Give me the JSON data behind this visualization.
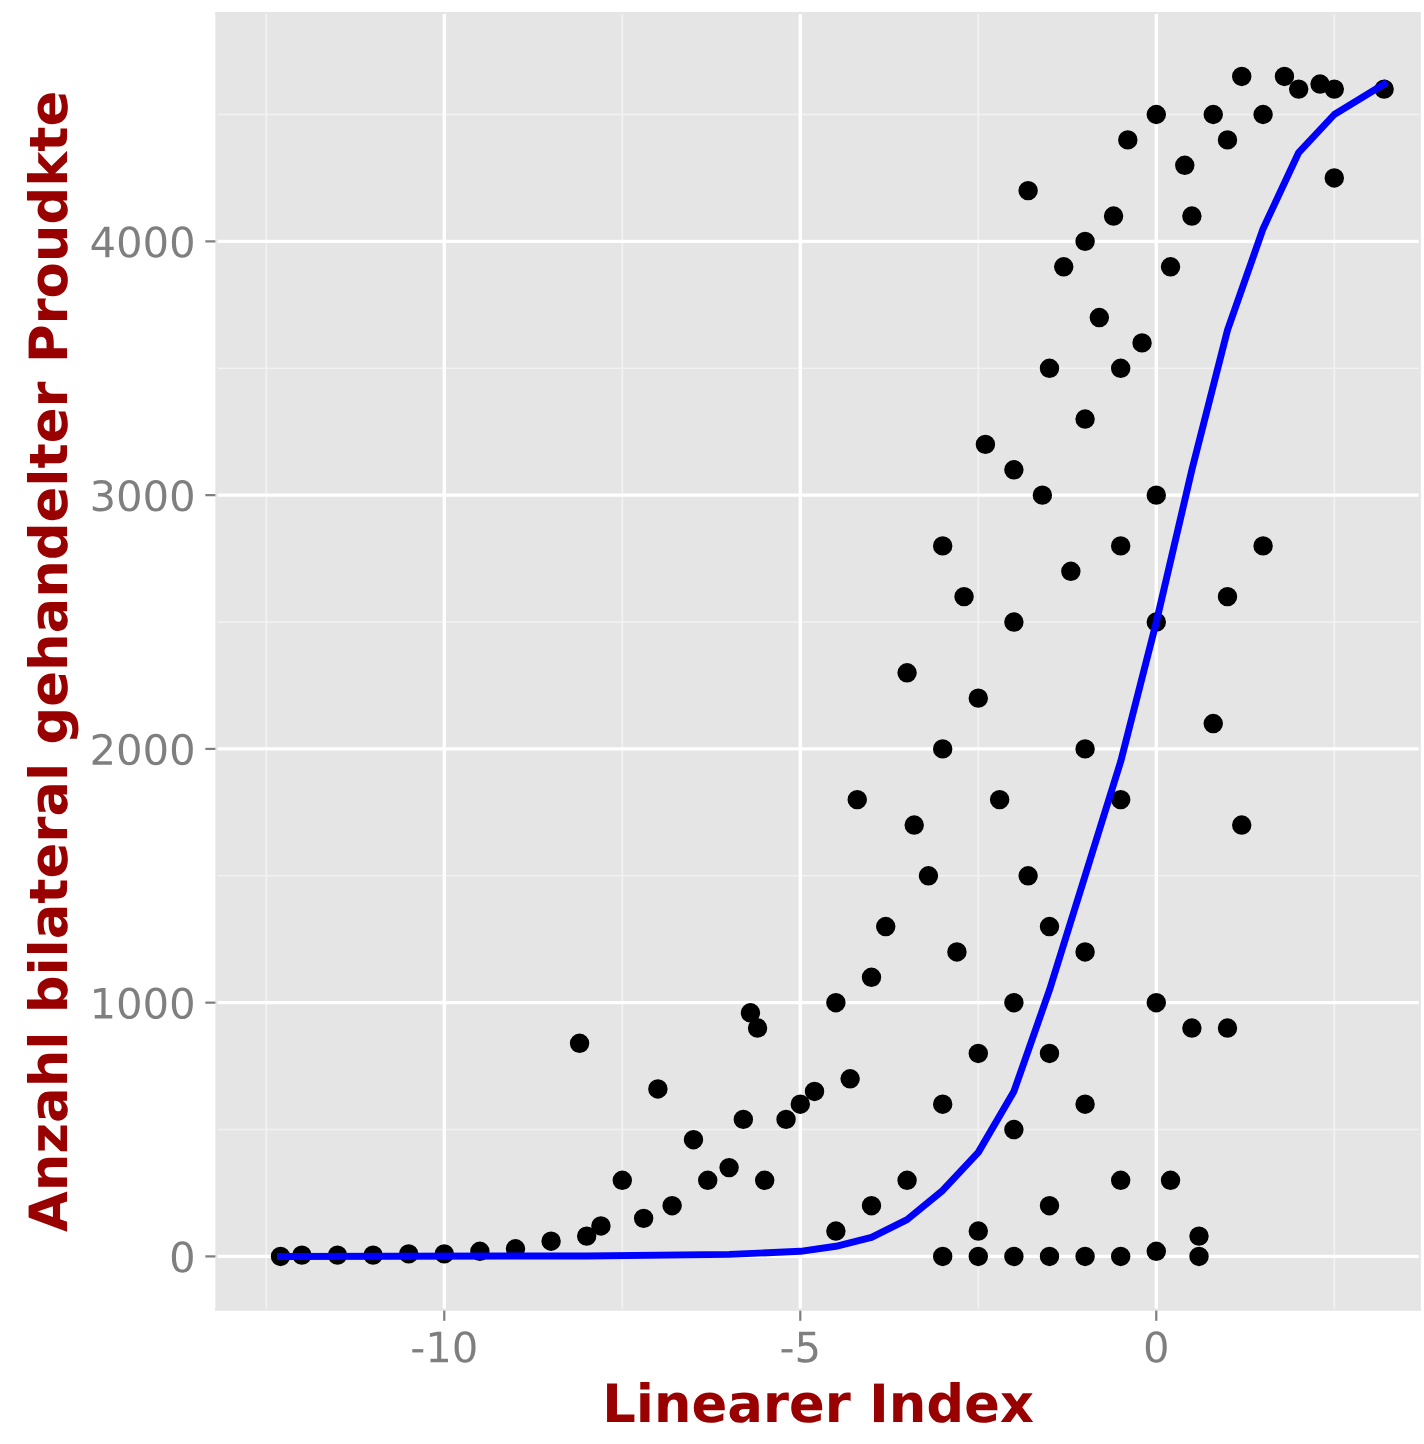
{
  "chart_data": {
    "type": "scatter",
    "xlabel": "Linearer Index",
    "ylabel": "Anzahl bilateral gehandelter Proudkte",
    "xlim": [
      -13.2,
      3.7
    ],
    "ylim": [
      -210,
      4900
    ],
    "xticks": [
      -10,
      -5,
      0
    ],
    "yticks": [
      0,
      1000,
      2000,
      3000,
      4000
    ],
    "grid": true,
    "marker": "circle",
    "series": [
      {
        "color": "#000000",
        "x": [
          -12.3,
          -12,
          -11.5,
          -11,
          -10.5,
          -10,
          -9.5,
          -9,
          -8.5,
          -8.1,
          -8,
          -7.8,
          -7.5,
          -7.2,
          -7,
          -6.8,
          -6.5,
          -6.3,
          -6,
          -5.8,
          -5.7,
          -5.6,
          -5.5,
          -5.2,
          -5,
          -4.8,
          -4.5,
          -4.3,
          -4.2,
          -4,
          -3.8,
          -3.5,
          -3.4,
          -3.2,
          -3,
          -3,
          -2.8,
          -2.7,
          -2.5,
          -2.4,
          -2.2,
          -2,
          -2,
          -1.8,
          -1.8,
          -1.6,
          -1.5,
          -1.3,
          -1.2,
          -1,
          -1,
          -0.8,
          -0.6,
          -0.5,
          -0.4,
          -0.2,
          0,
          0.2,
          0.4,
          0.5,
          0.8,
          1,
          1.2,
          1.5,
          1.8,
          2,
          2.3,
          2.5,
          3.2,
          2.5,
          -3,
          -2.5,
          -2,
          -1.5,
          -1,
          -0.5,
          0,
          0.6,
          0.6,
          0.2,
          0.5,
          1,
          1.2,
          0.8,
          1,
          1.5,
          -2,
          -1.5,
          -1,
          -0.5,
          0,
          -1,
          -0.5,
          0,
          -1.5,
          -2.5,
          -3,
          -3.5,
          -4,
          -4.5,
          -2,
          -1,
          -0.5,
          0,
          -1.5,
          -2.5
        ],
        "values": [
          0,
          5,
          5,
          5,
          10,
          10,
          20,
          30,
          60,
          840,
          80,
          120,
          300,
          150,
          660,
          200,
          460,
          300,
          350,
          540,
          960,
          900,
          300,
          540,
          600,
          650,
          1000,
          700,
          1800,
          1100,
          1300,
          2300,
          1700,
          1500,
          2000,
          2800,
          1200,
          2600,
          2200,
          3200,
          1800,
          3100,
          2500,
          4200,
          1500,
          3000,
          3500,
          3900,
          2700,
          4000,
          3300,
          3700,
          4100,
          3500,
          4400,
          3600,
          4500,
          3900,
          4300,
          4100,
          4500,
          4400,
          4650,
          4500,
          4650,
          4600,
          4620,
          4600,
          4600,
          4250,
          0,
          0,
          0,
          0,
          0,
          0,
          20,
          0,
          80,
          300,
          900,
          900,
          1700,
          2100,
          2600,
          2800,
          500,
          800,
          1200,
          1800,
          2500,
          2000,
          2800,
          3000,
          1300,
          800,
          600,
          300,
          200,
          100,
          1000,
          600,
          300,
          1000,
          200,
          100
        ]
      },
      {
        "type": "line",
        "color": "#0000ff",
        "marker": "none",
        "x": [
          -12.3,
          -8,
          -6,
          -5,
          -4.5,
          -4,
          -3.5,
          -3,
          -2.5,
          -2,
          -1.5,
          -1,
          -0.5,
          0,
          0.5,
          1,
          1.5,
          2,
          2.5,
          3.2
        ],
        "values": [
          0,
          2,
          8,
          20,
          40,
          75,
          145,
          260,
          410,
          650,
          1050,
          1500,
          1950,
          2500,
          3100,
          3650,
          4050,
          4350,
          4500,
          4620
        ]
      }
    ]
  }
}
